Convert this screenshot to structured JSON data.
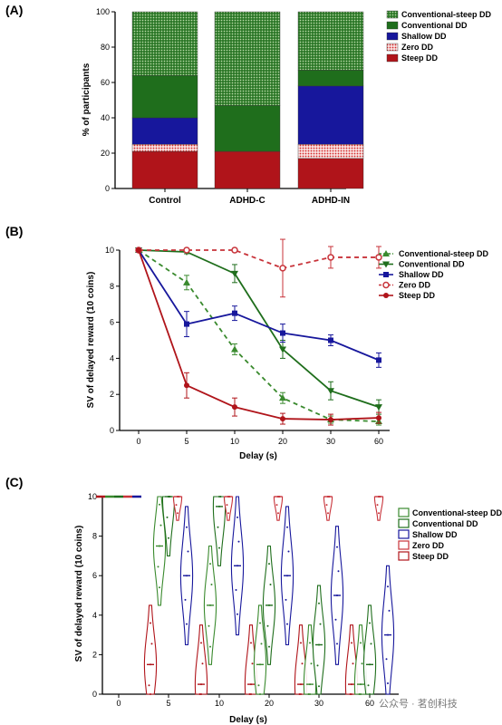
{
  "panels": [
    "(A)",
    "(B)",
    "(C)"
  ],
  "watermark": "公众号 · 茗创科技",
  "colors": {
    "conventional_steep": "#3a8a2e",
    "conventional": "#1f6e1c",
    "shallow": "#17179c",
    "zero": "#c8333a",
    "steep": "#b0141a",
    "zero_light": "#f2b0b0"
  },
  "chart_data": [
    {
      "type": "bar",
      "stacked": true,
      "categories": [
        "Control",
        "ADHD-C",
        "ADHD-IN"
      ],
      "ylabel": "% of participants",
      "ylim": [
        0,
        100
      ],
      "yticks": [
        0,
        20,
        40,
        60,
        80,
        100
      ],
      "legend_position": "top-right",
      "series": [
        {
          "name": "Steep DD",
          "values": [
            21,
            21,
            17
          ]
        },
        {
          "name": "Zero DD",
          "values": [
            4,
            0,
            8
          ]
        },
        {
          "name": "Shallow DD",
          "values": [
            15,
            0,
            33
          ]
        },
        {
          "name": "Conventional DD",
          "values": [
            24,
            26,
            9
          ]
        },
        {
          "name": "Conventional-steep DD",
          "values": [
            36,
            53,
            33
          ]
        }
      ]
    },
    {
      "type": "line",
      "x": [
        "0",
        "5",
        "10",
        "20",
        "30",
        "60"
      ],
      "xlabel": "Delay (s)",
      "ylabel": "SV of delayed reward (10 coins)",
      "ylim": [
        0,
        10
      ],
      "yticks": [
        0,
        2,
        4,
        6,
        8,
        10
      ],
      "legend_position": "top-right",
      "series": [
        {
          "name": "Conventional-steep DD",
          "values": [
            10,
            8.2,
            4.5,
            1.8,
            0.6,
            0.5
          ],
          "err": [
            0,
            0.4,
            0.3,
            0.3,
            0.2,
            0.2
          ]
        },
        {
          "name": "Conventional DD",
          "values": [
            10,
            9.9,
            8.7,
            4.5,
            2.2,
            1.3
          ],
          "err": [
            0,
            0.1,
            0.5,
            0.5,
            0.5,
            0.4
          ]
        },
        {
          "name": "Shallow DD",
          "values": [
            10,
            5.9,
            6.5,
            5.4,
            5.0,
            3.9
          ],
          "err": [
            0,
            0.7,
            0.4,
            0.5,
            0.3,
            0.4
          ]
        },
        {
          "name": "Zero DD",
          "values": [
            10,
            10,
            10,
            9.0,
            9.6,
            9.6
          ],
          "err": [
            0,
            0.1,
            0.1,
            1.6,
            0.6,
            0.6
          ]
        },
        {
          "name": "Steep DD",
          "values": [
            10,
            2.5,
            1.3,
            0.65,
            0.6,
            0.7
          ],
          "err": [
            0,
            0.7,
            0.5,
            0.3,
            0.3,
            0.3
          ]
        }
      ]
    },
    {
      "type": "violin",
      "x": [
        "0",
        "5",
        "10",
        "20",
        "30",
        "60"
      ],
      "xlabel": "Delay (s)",
      "ylabel": "SV of delayed reward (10 coins)",
      "ylim": [
        0,
        10
      ],
      "yticks": [
        0,
        2,
        4,
        6,
        8,
        10
      ],
      "legend_position": "top-right",
      "series": [
        {
          "name": "Conventional-steep DD",
          "medians": [
            10,
            7.5,
            4.5,
            1.5,
            0.5,
            0.5
          ]
        },
        {
          "name": "Conventional DD",
          "medians": [
            10,
            10,
            9.5,
            4.5,
            2.5,
            1.5
          ]
        },
        {
          "name": "Shallow DD",
          "medians": [
            10,
            6,
            6.5,
            6,
            5,
            3
          ]
        },
        {
          "name": "Zero DD",
          "medians": [
            10,
            10,
            10,
            10,
            10,
            10
          ]
        },
        {
          "name": "Steep DD",
          "medians": [
            10,
            1.5,
            0.5,
            0.5,
            0.5,
            0.5
          ]
        }
      ]
    }
  ]
}
